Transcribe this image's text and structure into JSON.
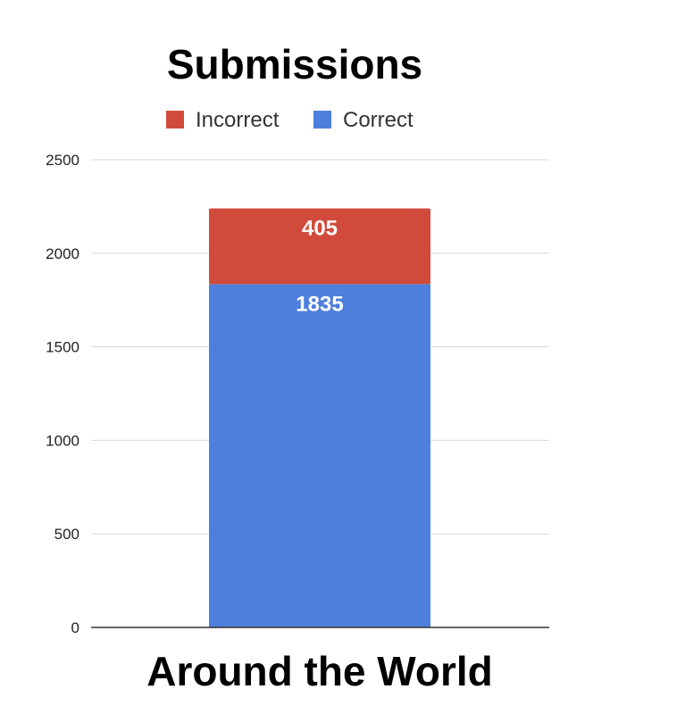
{
  "chart_data": {
    "type": "bar",
    "stacked": true,
    "title": "Submissions",
    "categories": [
      "Around the World"
    ],
    "series": [
      {
        "name": "Correct",
        "values": [
          1835
        ],
        "color": "#4f7fdd"
      },
      {
        "name": "Incorrect",
        "values": [
          405
        ],
        "color": "#d14b3c"
      }
    ],
    "legend": {
      "placement": "top",
      "items": [
        {
          "label": "Incorrect",
          "color": "#d14b3c"
        },
        {
          "label": "Correct",
          "color": "#4f7fdd"
        }
      ]
    },
    "data_labels": [
      "1835",
      "405"
    ],
    "y_ticks": [
      "0",
      "500",
      "1000",
      "1500",
      "2000",
      "2500"
    ],
    "ylim": [
      0,
      2500
    ],
    "xlabel": "",
    "ylabel": "",
    "grid": true
  },
  "colors": {
    "grid": "#d9d9d9",
    "axis": "#333333"
  }
}
